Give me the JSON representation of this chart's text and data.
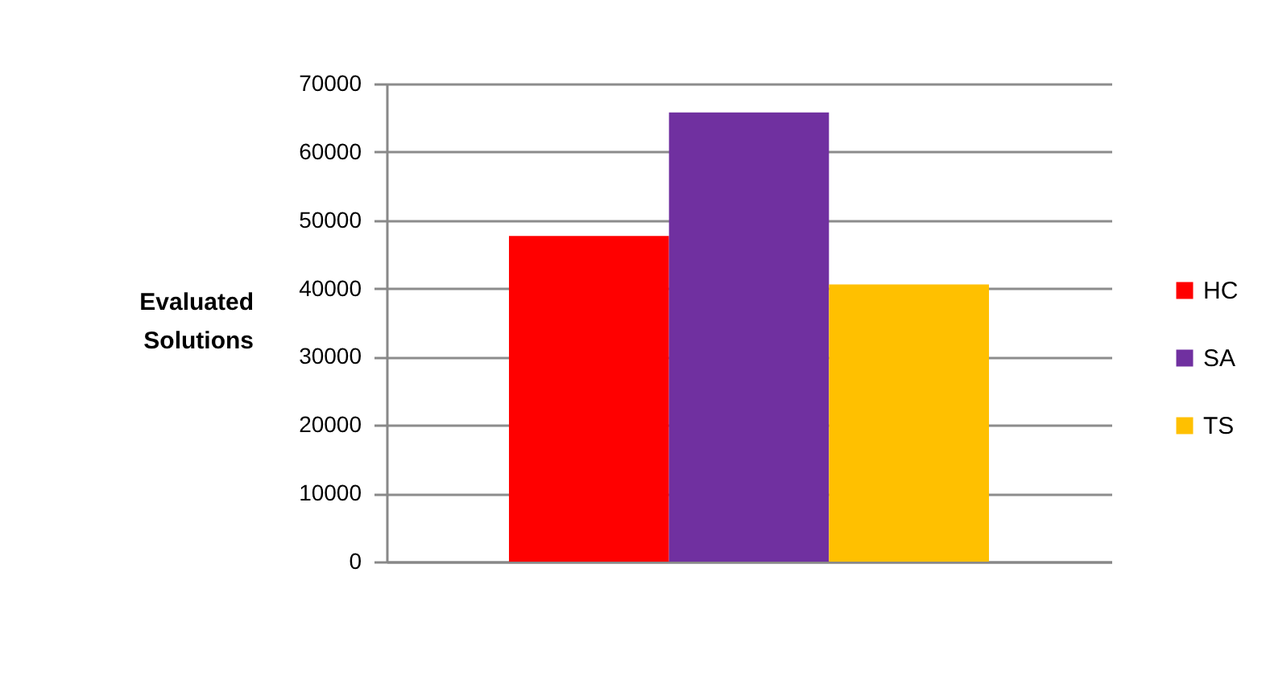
{
  "chart_data": {
    "type": "bar",
    "ylabel": "Evaluated Solutions",
    "categories": [
      null
    ],
    "series": [
      {
        "name": "HC",
        "color": "#ff0000",
        "values": [
          47700
        ]
      },
      {
        "name": "SA",
        "color": "#7030a0",
        "values": [
          65800
        ]
      },
      {
        "name": "TS",
        "color": "#ffc000",
        "values": [
          40600
        ]
      }
    ],
    "ylim": [
      0,
      70000
    ],
    "yticks": [
      0,
      10000,
      20000,
      30000,
      40000,
      50000,
      60000,
      70000
    ],
    "grid": "y",
    "legend": "right",
    "tick_labels": "y"
  }
}
